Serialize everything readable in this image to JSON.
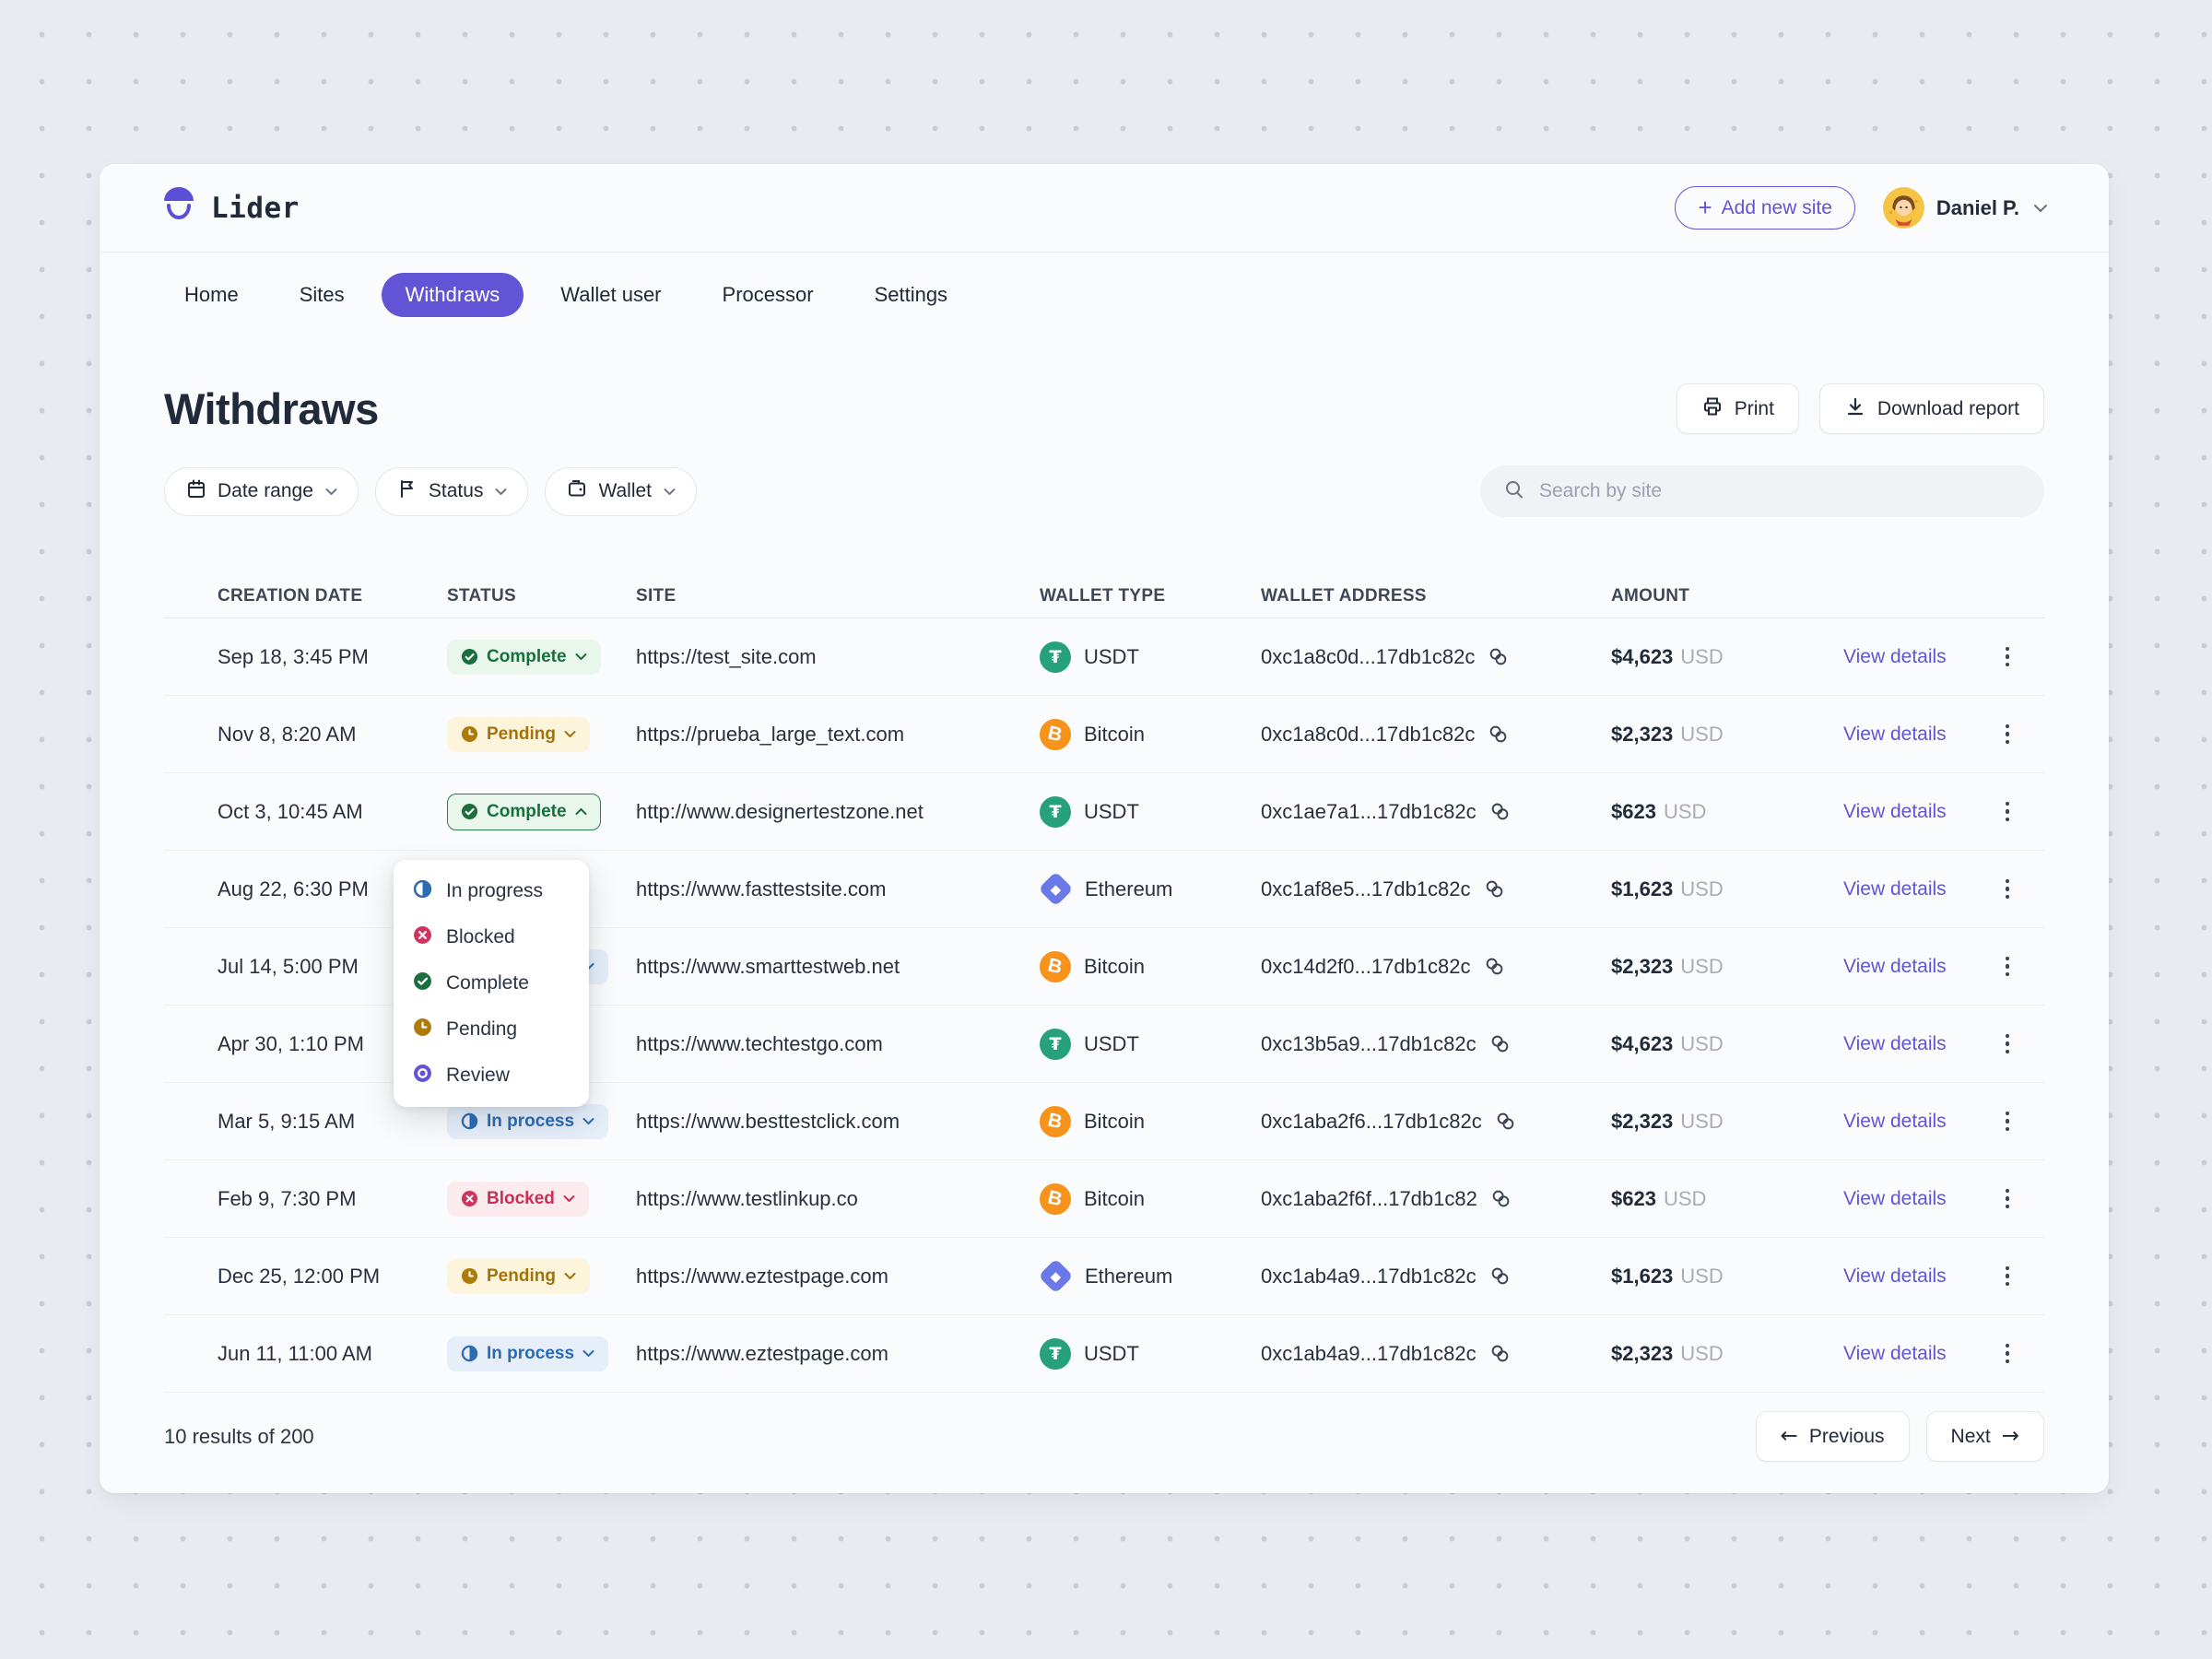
{
  "header": {
    "brand": "Lider",
    "add_site_label": "Add new site",
    "user_name": "Daniel P."
  },
  "nav": {
    "tabs": [
      {
        "label": "Home",
        "active": false
      },
      {
        "label": "Sites",
        "active": false
      },
      {
        "label": "Withdraws",
        "active": true
      },
      {
        "label": "Wallet user",
        "active": false
      },
      {
        "label": "Processor",
        "active": false
      },
      {
        "label": "Settings",
        "active": false
      }
    ]
  },
  "page": {
    "title": "Withdraws",
    "print_label": "Print",
    "download_label": "Download report"
  },
  "filters": {
    "items": [
      {
        "id": "date-range",
        "label": "Date range",
        "icon": "calendar"
      },
      {
        "id": "status",
        "label": "Status",
        "icon": "flag"
      },
      {
        "id": "wallet",
        "label": "Wallet",
        "icon": "wallet"
      }
    ],
    "search_placeholder": "Search by site"
  },
  "table": {
    "columns": [
      "CREATION DATE",
      "STATUS",
      "SITE",
      "WALLET TYPE",
      "WALLET ADDRESS",
      "AMOUNT"
    ],
    "row_action_label": "View details",
    "rows": [
      {
        "date": "Sep 18, 3:45 PM",
        "status": {
          "label": "Complete",
          "type": "complete",
          "open": false
        },
        "site": "https://test_site.com",
        "wallet": {
          "type": "usdt",
          "label": "USDT"
        },
        "address": "0xc1a8c0d...17db1c82c",
        "amount": "$4,623",
        "currency": "USD"
      },
      {
        "date": "Nov 8, 8:20 AM",
        "status": {
          "label": "Pending",
          "type": "pending",
          "open": false
        },
        "site": "https://prueba_large_text.com",
        "wallet": {
          "type": "bitcoin",
          "label": "Bitcoin"
        },
        "address": "0xc1a8c0d...17db1c82c",
        "amount": "$2,323",
        "currency": "USD"
      },
      {
        "date": "Oct 3, 10:45 AM",
        "status": {
          "label": "Complete",
          "type": "complete",
          "open": true
        },
        "site": "http://www.designertestzone.net",
        "wallet": {
          "type": "usdt",
          "label": "USDT"
        },
        "address": "0xc1ae7a1...17db1c82c",
        "amount": "$623",
        "currency": "USD"
      },
      {
        "date": "Aug 22, 6:30 PM",
        "status": null,
        "site": "https://www.fasttestsite.com",
        "wallet": {
          "type": "ethereum",
          "label": "Ethereum"
        },
        "address": "0xc1af8e5...17db1c82c",
        "amount": "$1,623",
        "currency": "USD"
      },
      {
        "date": "Jul 14, 5:00 PM",
        "status": {
          "label": "In process",
          "type": "inprocess",
          "peek": true
        },
        "site": "https://www.smarttestweb.net",
        "wallet": {
          "type": "bitcoin",
          "label": "Bitcoin"
        },
        "address": "0xc14d2f0...17db1c82c",
        "amount": "$2,323",
        "currency": "USD"
      },
      {
        "date": "Apr 30, 1:10 PM",
        "status": null,
        "site": "https://www.techtestgo.com",
        "wallet": {
          "type": "usdt",
          "label": "USDT"
        },
        "address": "0xc13b5a9...17db1c82c",
        "amount": "$4,623",
        "currency": "USD"
      },
      {
        "date": "Mar 5, 9:15 AM",
        "status": {
          "label": "In process",
          "type": "inprocess",
          "open": false
        },
        "site": "https://www.besttestclick.com",
        "wallet": {
          "type": "bitcoin",
          "label": "Bitcoin"
        },
        "address": "0xc1aba2f6...17db1c82c",
        "amount": "$2,323",
        "currency": "USD"
      },
      {
        "date": "Feb 9, 7:30 PM",
        "status": {
          "label": "Blocked",
          "type": "blocked",
          "open": false
        },
        "site": "https://www.testlinkup.co",
        "wallet": {
          "type": "bitcoin",
          "label": "Bitcoin"
        },
        "address": "0xc1aba2f6f...17db1c82",
        "amount": "$623",
        "currency": "USD"
      },
      {
        "date": "Dec 25, 12:00 PM",
        "status": {
          "label": "Pending",
          "type": "pending",
          "open": false
        },
        "site": "https://www.eztestpage.com",
        "wallet": {
          "type": "ethereum",
          "label": "Ethereum"
        },
        "address": "0xc1ab4a9...17db1c82c",
        "amount": "$1,623",
        "currency": "USD"
      },
      {
        "date": "Jun 11, 11:00 AM",
        "status": {
          "label": "In process",
          "type": "inprocess",
          "open": false
        },
        "site": "https://www.eztestpage.com",
        "wallet": {
          "type": "usdt",
          "label": "USDT"
        },
        "address": "0xc1ab4a9...17db1c82c",
        "amount": "$2,323",
        "currency": "USD"
      }
    ]
  },
  "status_menu": {
    "items": [
      {
        "label": "In progress",
        "type": "inprocess"
      },
      {
        "label": "Blocked",
        "type": "blocked"
      },
      {
        "label": "Complete",
        "type": "complete"
      },
      {
        "label": "Pending",
        "type": "pending"
      },
      {
        "label": "Review",
        "type": "review"
      }
    ]
  },
  "footer": {
    "results": "10 results of 200",
    "previous_label": "Previous",
    "next_label": "Next"
  },
  "colors": {
    "accent": "#6254d4",
    "page_bg": "#e9ebf2",
    "card_bg": "#fafbfc",
    "complete": "#17703c",
    "pending": "#a47208",
    "in_process": "#2a6bb3",
    "blocked": "#c92f56",
    "review": "#6254d4",
    "usdt": "#26a17b",
    "bitcoin": "#f7931a",
    "ethereum": "#6b79e8",
    "avatar_bg": "#f6c445"
  }
}
